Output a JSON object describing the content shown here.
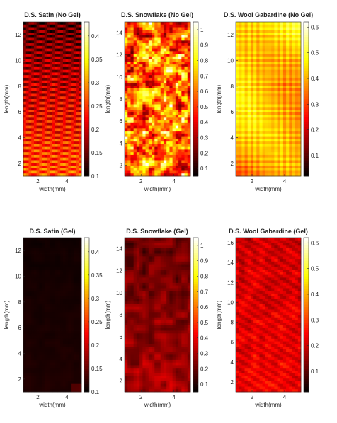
{
  "colormap": "hot",
  "colors": {
    "axis": "#262626",
    "background": "#ffffff"
  },
  "chart_data": [
    {
      "type": "heatmap",
      "title": "D.S. Satin (No Gel)",
      "xlabel": "width(mm)",
      "ylabel": "length(mm)",
      "xlim": [
        1,
        5
      ],
      "ylim": [
        1,
        13
      ],
      "x_ticks": [
        "2",
        "4"
      ],
      "y_ticks": [
        "2",
        "4",
        "6",
        "8",
        "10",
        "12"
      ],
      "colorbar": {
        "range": [
          0.1,
          0.43
        ],
        "ticks": [
          "0.1",
          "0.15",
          "0.2",
          "0.25",
          "0.3",
          "0.35",
          "0.4"
        ]
      },
      "pattern": "diagonal-stripes",
      "value_gradient": {
        "bottom": 0.27,
        "top": 0.14
      }
    },
    {
      "type": "heatmap",
      "title": "D.S. Snowflake (No Gel)",
      "xlabel": "width(mm)",
      "ylabel": "length(mm)",
      "xlim": [
        1,
        5
      ],
      "ylim": [
        1,
        15
      ],
      "x_ticks": [
        "2",
        "4"
      ],
      "y_ticks": [
        "2",
        "4",
        "6",
        "8",
        "10",
        "12",
        "14"
      ],
      "colorbar": {
        "range": [
          0.05,
          1.05
        ],
        "ticks": [
          "0.1",
          "0.2",
          "0.3",
          "0.4",
          "0.5",
          "0.6",
          "0.7",
          "0.8",
          "0.9",
          "1"
        ]
      },
      "pattern": "mottled",
      "value_gradient": {
        "bottom": 0.55,
        "top": 0.55
      }
    },
    {
      "type": "heatmap",
      "title": "D.S. Wool Gabardine (No Gel)",
      "xlabel": "width(mm)",
      "ylabel": "length(mm)",
      "xlim": [
        1,
        5
      ],
      "ylim": [
        1,
        13
      ],
      "x_ticks": [
        "2",
        "4"
      ],
      "y_ticks": [
        "2",
        "4",
        "6",
        "8",
        "10",
        "12"
      ],
      "colorbar": {
        "range": [
          0.02,
          0.62
        ],
        "ticks": [
          "0.1",
          "0.2",
          "0.3",
          "0.4",
          "0.5",
          "0.6"
        ]
      },
      "pattern": "twill",
      "value_gradient": {
        "bottom": 0.33,
        "top": 0.5
      }
    },
    {
      "type": "heatmap",
      "title": "D.S. Satin (Gel)",
      "xlabel": "width(mm)",
      "ylabel": "length(mm)",
      "xlim": [
        1,
        5
      ],
      "ylim": [
        1,
        13
      ],
      "x_ticks": [
        "2",
        "4"
      ],
      "y_ticks": [
        "2",
        "4",
        "6",
        "8",
        "10",
        "12"
      ],
      "colorbar": {
        "range": [
          0.1,
          0.43
        ],
        "ticks": [
          "0.1",
          "0.15",
          "0.2",
          "0.25",
          "0.3",
          "0.35",
          "0.4"
        ]
      },
      "pattern": "uniform",
      "value_gradient": {
        "bottom": 0.115,
        "top": 0.108
      }
    },
    {
      "type": "heatmap",
      "title": "D.S. Snowflake (Gel)",
      "xlabel": "width(mm)",
      "ylabel": "length(mm)",
      "xlim": [
        1,
        5
      ],
      "ylim": [
        1,
        15
      ],
      "x_ticks": [
        "2",
        "4"
      ],
      "y_ticks": [
        "2",
        "4",
        "6",
        "8",
        "10",
        "12",
        "14"
      ],
      "colorbar": {
        "range": [
          0.05,
          1.05
        ],
        "ticks": [
          "0.1",
          "0.2",
          "0.3",
          "0.4",
          "0.5",
          "0.6",
          "0.7",
          "0.8",
          "0.9",
          "1"
        ]
      },
      "pattern": "smooth",
      "value_gradient": {
        "bottom": 0.3,
        "top": 0.2
      }
    },
    {
      "type": "heatmap",
      "title": "D.S. Wool Gabardine (Gel)",
      "xlabel": "width(mm)",
      "ylabel": "length(mm)",
      "xlim": [
        1,
        5
      ],
      "ylim": [
        1,
        16.5
      ],
      "x_ticks": [
        "2",
        "4"
      ],
      "y_ticks": [
        "2",
        "4",
        "6",
        "8",
        "10",
        "12",
        "14",
        "16"
      ],
      "colorbar": {
        "range": [
          0.02,
          0.62
        ],
        "ticks": [
          "0.1",
          "0.2",
          "0.3",
          "0.4",
          "0.5",
          "0.6"
        ]
      },
      "pattern": "faint-twill",
      "value_gradient": {
        "bottom": 0.24,
        "top": 0.2
      }
    }
  ]
}
